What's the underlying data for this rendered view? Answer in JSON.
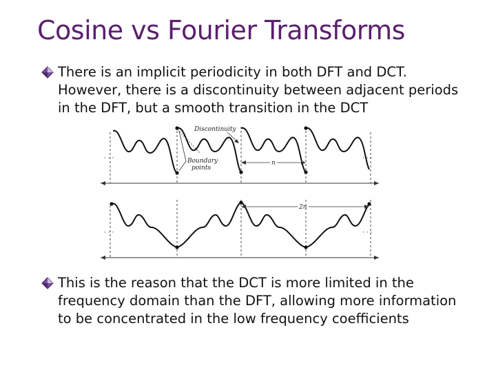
{
  "slide": {
    "title": "Cosine vs Fourier Transforms",
    "bullets": [
      {
        "icon": "diamond-bullet-icon",
        "text": "There is an implicit periodicity in both DFT and DCT. However, there is a discontinuity between adjacent periods in the DFT, but a smooth transition in the DCT"
      },
      {
        "icon": "diamond-bullet-icon",
        "text": "This is the reason that the DCT is more limited in the frequency domain than the DFT, allowing more information to be concentrated in the low frequency coefficients"
      }
    ],
    "figure": {
      "label_discontinuity": "Discontinuity",
      "label_boundary_1": "Boundary",
      "label_boundary_2": "points",
      "label_n": "n",
      "label_2n": "2n",
      "ellipsis": "· · ·"
    },
    "colors": {
      "title": "#5a1f6e",
      "text": "#111111"
    }
  }
}
